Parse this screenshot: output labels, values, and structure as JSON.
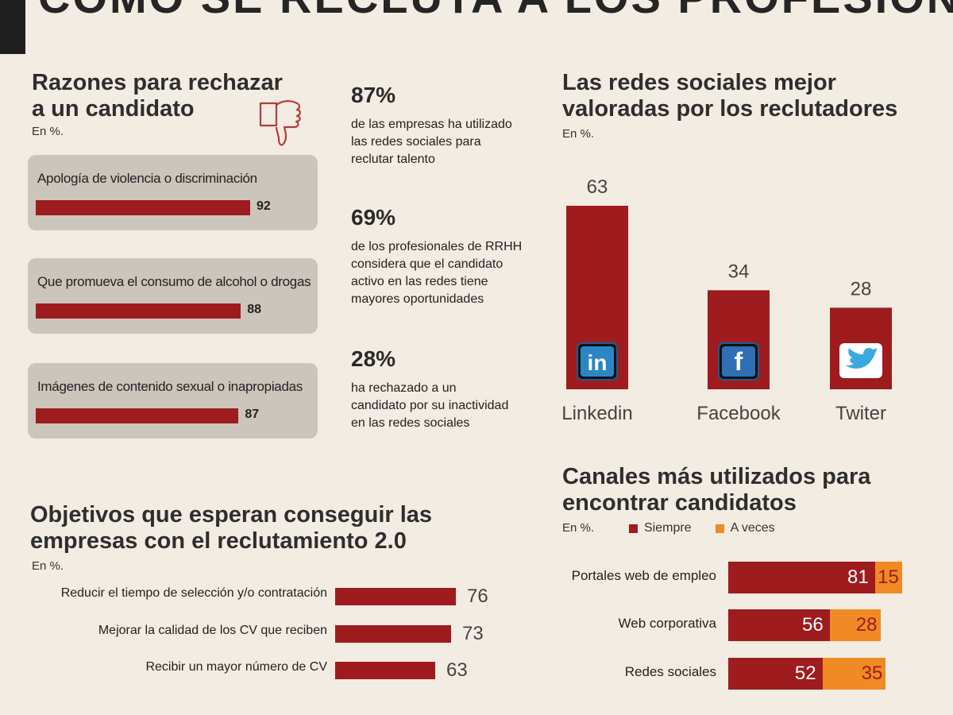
{
  "header": {
    "title": "CÓMO SE RECLUTA A LOS PROFESIONALES EN INTERNET"
  },
  "colors": {
    "primary": "#9e1b1e",
    "secondary": "#f08a24",
    "card_bg": "#ccc5bb",
    "page_bg": "#f3ece2"
  },
  "rejection": {
    "title_line1": "Razones para rechazar",
    "title_line2": "a un candidato",
    "unit": "En %.",
    "icon": "thumbs-down-icon",
    "items": [
      {
        "label": "Apología de violencia o discriminación",
        "value": 92
      },
      {
        "label": "Que promueva el consumo de alcohol o drogas",
        "value": 88
      },
      {
        "label": "Imágenes de contenido sexual o inapropiadas",
        "value": 87
      }
    ]
  },
  "stats": [
    {
      "value": "87%",
      "text": "de las empresas ha utilizado\nlas redes sociales para\nreclutar talento"
    },
    {
      "value": "69%",
      "text": "de los profesionales de RRHH\nconsidera que el candidato\nactivo en las redes tiene\nmayores oportunidades"
    },
    {
      "value": "28%",
      "text": "ha rechazado a un\ncandidato por su inactividad\nen las redes sociales"
    }
  ],
  "networks": {
    "title_line1": "Las redes sociales mejor",
    "title_line2": "valoradas por los reclutadores",
    "unit": "En %.",
    "items": [
      {
        "name": "Linkedin",
        "value": 63,
        "icon": "linkedin-icon",
        "value_label": "63"
      },
      {
        "name": "Facebook",
        "value": 34,
        "icon": "facebook-icon",
        "value_label": "34"
      },
      {
        "name": "Twiter",
        "value": 28,
        "icon": "twitter-icon",
        "value_label": "28"
      }
    ]
  },
  "objectives": {
    "title_line1": "Objetivos que esperan conseguir las",
    "title_line2": "empresas con el reclutamiento 2.0",
    "unit": "En %.",
    "items": [
      {
        "label": "Reducir el tiempo de selección y/o contratación",
        "value": 76,
        "value_label": "76"
      },
      {
        "label": "Mejorar la calidad de los CV que reciben",
        "value": 73,
        "value_label": "73"
      },
      {
        "label": "Recibir un mayor número de CV",
        "value": 63,
        "value_label": "63"
      }
    ]
  },
  "channels": {
    "title_line1": "Canales más utilizados para",
    "title_line2": "encontrar candidatos",
    "unit": "En %.",
    "legend": {
      "siempre": "Siempre",
      "aveces": "A veces"
    },
    "items": [
      {
        "label": "Portales web de empleo",
        "siempre": 81,
        "aveces": 15,
        "siempre_label": "81",
        "aveces_label": "15"
      },
      {
        "label": "Web corporativa",
        "siempre": 56,
        "aveces": 28,
        "siempre_label": "56",
        "aveces_label": "28"
      },
      {
        "label": "Redes sociales",
        "siempre": 52,
        "aveces": 35,
        "siempre_label": "52",
        "aveces_label": "35"
      }
    ]
  },
  "chart_data": [
    {
      "type": "bar",
      "title": "Razones para rechazar a un candidato",
      "ylabel": "En %.",
      "categories": [
        "Apología de violencia o discriminación",
        "Que promueva el consumo de alcohol o drogas",
        "Imágenes de contenido sexual o inapropiadas"
      ],
      "values": [
        92,
        88,
        87
      ]
    },
    {
      "type": "bar",
      "title": "Las redes sociales mejor valoradas por los reclutadores",
      "ylabel": "En %.",
      "categories": [
        "Linkedin",
        "Facebook",
        "Twiter"
      ],
      "values": [
        63,
        34,
        28
      ]
    },
    {
      "type": "bar",
      "title": "Objetivos que esperan conseguir las empresas con el reclutamiento 2.0",
      "ylabel": "En %.",
      "categories": [
        "Reducir el tiempo de selección y/o contratación",
        "Mejorar la calidad de los CV que reciben",
        "Recibir un mayor número de CV"
      ],
      "values": [
        76,
        73,
        63
      ]
    },
    {
      "type": "bar",
      "title": "Canales más utilizados para encontrar candidatos",
      "ylabel": "En %.",
      "categories": [
        "Portales web de empleo",
        "Web corporativa",
        "Redes sociales"
      ],
      "series": [
        {
          "name": "Siempre",
          "values": [
            81,
            56,
            52
          ]
        },
        {
          "name": "A veces",
          "values": [
            15,
            28,
            35
          ]
        }
      ],
      "legend": "top-left"
    }
  ]
}
